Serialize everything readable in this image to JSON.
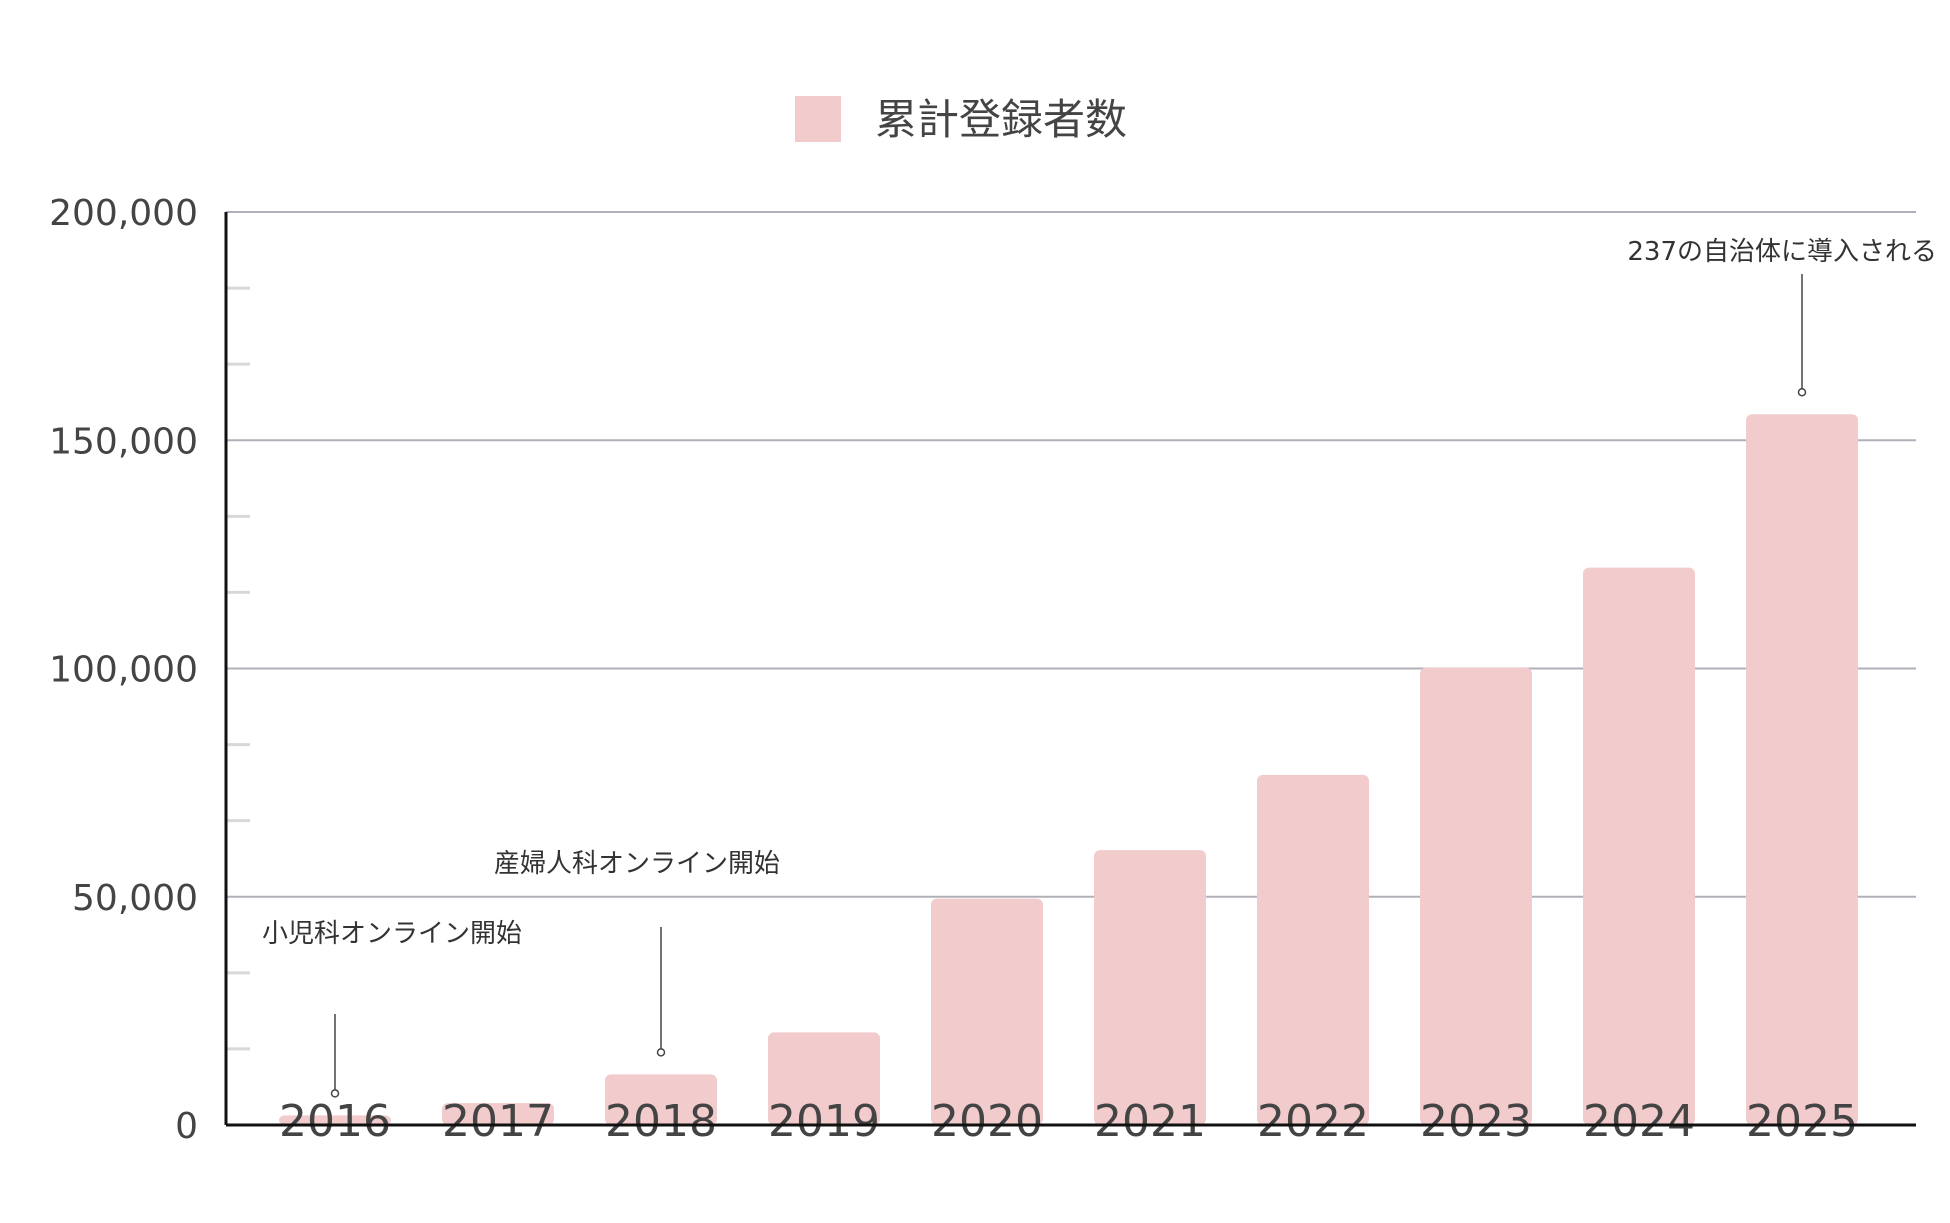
{
  "chart_data": {
    "type": "bar",
    "title": "",
    "xlabel": "",
    "ylabel": "",
    "legend": {
      "position": "top",
      "entries": [
        "累計登録者数"
      ]
    },
    "categories": [
      "2016",
      "2017",
      "2018",
      "2019",
      "2020",
      "2021",
      "2022",
      "2023",
      "2024",
      "2025"
    ],
    "series": [
      {
        "name": "累計登録者数",
        "color": "#f2cccc",
        "values": [
          2100,
          4800,
          11100,
          20300,
          49600,
          60200,
          76700,
          100200,
          122100,
          155700
        ]
      }
    ],
    "ylim": [
      0,
      200000
    ],
    "yticks": [
      0,
      50000,
      100000,
      150000,
      200000
    ],
    "ytick_labels": [
      "0",
      "50,000",
      "100,000",
      "150,000",
      "200,000"
    ],
    "grid": true,
    "annotations": [
      {
        "category": "2016",
        "text": "小児科オンライン開始"
      },
      {
        "category": "2018",
        "text": "産婦人科オンライン開始"
      },
      {
        "category": "2025",
        "text": "237の自治体に導入される"
      }
    ]
  }
}
